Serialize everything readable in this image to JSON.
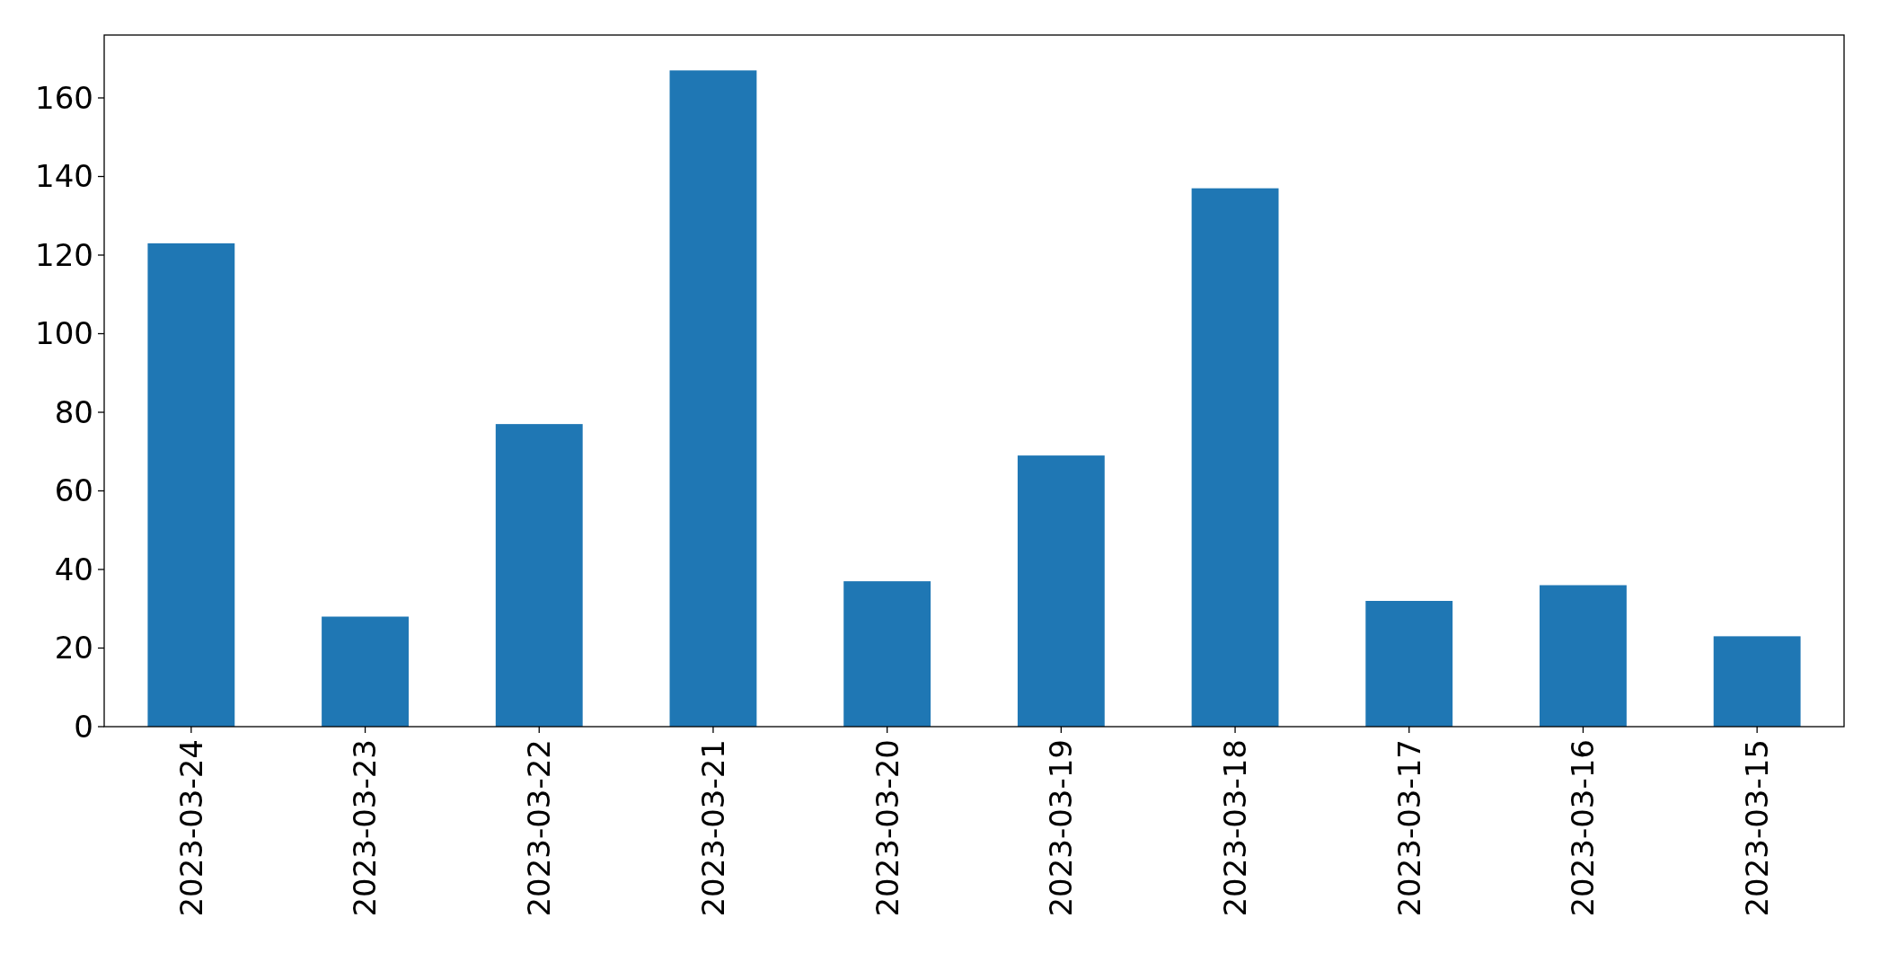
{
  "chart_data": {
    "type": "bar",
    "categories": [
      "2023-03-24",
      "2023-03-23",
      "2023-03-22",
      "2023-03-21",
      "2023-03-20",
      "2023-03-19",
      "2023-03-18",
      "2023-03-17",
      "2023-03-16",
      "2023-03-15"
    ],
    "values": [
      123,
      28,
      77,
      167,
      37,
      69,
      137,
      32,
      36,
      23
    ],
    "color": "#1f77b4",
    "ylim": [
      0,
      176
    ],
    "yticks": [
      0,
      20,
      40,
      60,
      80,
      100,
      120,
      140,
      160
    ]
  }
}
